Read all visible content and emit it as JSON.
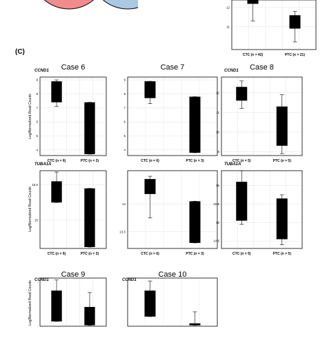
{
  "panel_label": "(C)",
  "venn": {
    "left_color": "#f28b8b",
    "right_color": "#a8c8e6",
    "stroke": "#000000"
  },
  "chart_data": [
    {
      "type": "box",
      "panel": "B",
      "gene": "",
      "title": "",
      "ylabel": "",
      "ylim": [
        9.8,
        12.4
      ],
      "yticks": [
        "11",
        "12"
      ],
      "ytick_values": [
        11,
        12
      ],
      "categories": [
        "CTC (n = 42)",
        "PTC (n = 21)"
      ],
      "boxes": [
        {
          "whisker_low": 11.3,
          "q1": 12.2,
          "q3": 12.45,
          "whisker_high": 12.45
        },
        {
          "whisker_low": 10.2,
          "q1": 10.9,
          "q3": 11.6,
          "whisker_high": 11.8
        }
      ]
    },
    {
      "type": "box",
      "case": 6,
      "gene": "CCND1",
      "title": "Case 6",
      "ylabel": "Log/Normalized Read Counts",
      "ylim": [
        3.6,
        9.2
      ],
      "yticks": [
        "4",
        "5",
        "6",
        "7",
        "8",
        "9"
      ],
      "ytick_values": [
        4,
        5,
        6,
        7,
        8,
        9
      ],
      "categories": [
        "CTC (n = 6)",
        "PTC (n = 3)"
      ],
      "boxes": [
        {
          "whisker_low": 7.1,
          "q1": 7.4,
          "q3": 8.9,
          "whisker_high": 9.0
        },
        {
          "whisker_low": 3.7,
          "q1": 3.7,
          "q3": 7.4,
          "whisker_high": 7.4
        }
      ]
    },
    {
      "type": "box",
      "case": 7,
      "gene": "",
      "title": "Case 7",
      "ylabel": "",
      "ylim": [
        3.6,
        9.2
      ],
      "yticks": [
        "4",
        "5",
        "6",
        "7",
        "8",
        "9"
      ],
      "ytick_values": [
        4,
        5,
        6,
        7,
        8,
        9
      ],
      "categories": [
        "CTC (n = 6)",
        "PTC (n = 3)"
      ],
      "boxes": [
        {
          "whisker_low": 7.3,
          "q1": 7.7,
          "q3": 8.9,
          "whisker_high": 8.9
        },
        {
          "whisker_low": 3.8,
          "q1": 3.8,
          "q3": 7.8,
          "whisker_high": 7.8
        }
      ]
    },
    {
      "type": "box",
      "case": 8,
      "gene": "CCND1",
      "title": "Case 8",
      "ylabel": "",
      "ylim": [
        8.8,
        12.8
      ],
      "yticks": [
        "9",
        "10",
        "11",
        "12"
      ],
      "ytick_values": [
        9,
        10,
        11,
        12
      ],
      "categories": [
        "CTC (n = 5)",
        "PTC (n = 5)"
      ],
      "boxes": [
        {
          "whisker_low": 11.2,
          "q1": 11.6,
          "q3": 12.3,
          "whisker_high": 12.6
        },
        {
          "whisker_low": 8.9,
          "q1": 9.3,
          "q3": 11.3,
          "whisker_high": 11.9
        }
      ]
    },
    {
      "type": "box",
      "case": 6,
      "gene": "TUBA1A",
      "title": "",
      "ylabel": "Log/Normalized Read Counts",
      "ylim": [
        14.6,
        15.7
      ],
      "yticks": [
        "15",
        "15.5"
      ],
      "ytick_values": [
        15,
        15.5
      ],
      "categories": [
        "CTC (n = 6)",
        "PTC (n = 3)"
      ],
      "boxes": [
        {
          "whisker_low": 15.25,
          "q1": 15.25,
          "q3": 15.55,
          "whisker_high": 15.68
        },
        {
          "whisker_low": 14.62,
          "q1": 14.62,
          "q3": 15.45,
          "whisker_high": 15.45
        }
      ]
    },
    {
      "type": "box",
      "case": 7,
      "gene": "",
      "title": "",
      "ylabel": "",
      "ylim": [
        13.2,
        14.6
      ],
      "yticks": [
        "13.5",
        "14"
      ],
      "ytick_values": [
        13.5,
        14
      ],
      "categories": [
        "CTC (n = 6)",
        "PTC (n = 3)"
      ],
      "boxes": [
        {
          "whisker_low": 13.75,
          "q1": 14.18,
          "q3": 14.45,
          "whisker_high": 14.5
        },
        {
          "whisker_low": 13.3,
          "q1": 13.3,
          "q3": 14.05,
          "whisker_high": 14.05
        }
      ]
    },
    {
      "type": "box",
      "case": 8,
      "gene": "TUBA1A",
      "title": "",
      "ylabel": "",
      "ylim": [
        14.3,
        16.4
      ],
      "yticks": [
        "14.5",
        "15",
        "15.5",
        "16"
      ],
      "ytick_values": [
        14.5,
        15,
        15.5,
        16
      ],
      "categories": [
        "CTC (n = 5)",
        "PTC (n = 5)"
      ],
      "boxes": [
        {
          "whisker_low": 14.95,
          "q1": 15.05,
          "q3": 16.1,
          "whisker_high": 16.4
        },
        {
          "whisker_low": 14.4,
          "q1": 14.55,
          "q3": 15.65,
          "whisker_high": 15.75
        }
      ]
    },
    {
      "type": "box",
      "case": 9,
      "gene": "CCND1",
      "title": "Case 9",
      "ylabel": "Log/Normalized Read Counts",
      "ylim": [
        4.5,
        9.5
      ],
      "yticks": [],
      "ytick_values": [],
      "categories": [
        "",
        ""
      ],
      "boxes": [
        {
          "whisker_low": 5.0,
          "q1": 5.0,
          "q3": 8.2,
          "whisker_high": 9.3
        },
        {
          "whisker_low": 4.6,
          "q1": 4.6,
          "q3": 6.5,
          "whisker_high": 8.0
        }
      ]
    },
    {
      "type": "box",
      "case": 10,
      "gene": "CCND1",
      "title": "Case 10",
      "ylabel": "",
      "ylim": [
        4.5,
        9.5
      ],
      "yticks": [],
      "ytick_values": [],
      "categories": [
        "",
        ""
      ],
      "boxes": [
        {
          "whisker_low": 5.5,
          "q1": 5.5,
          "q3": 8.2,
          "whisker_high": 9.2
        },
        {
          "whisker_low": 4.6,
          "q1": 4.6,
          "q3": 4.8,
          "whisker_high": 6.0
        }
      ]
    }
  ]
}
